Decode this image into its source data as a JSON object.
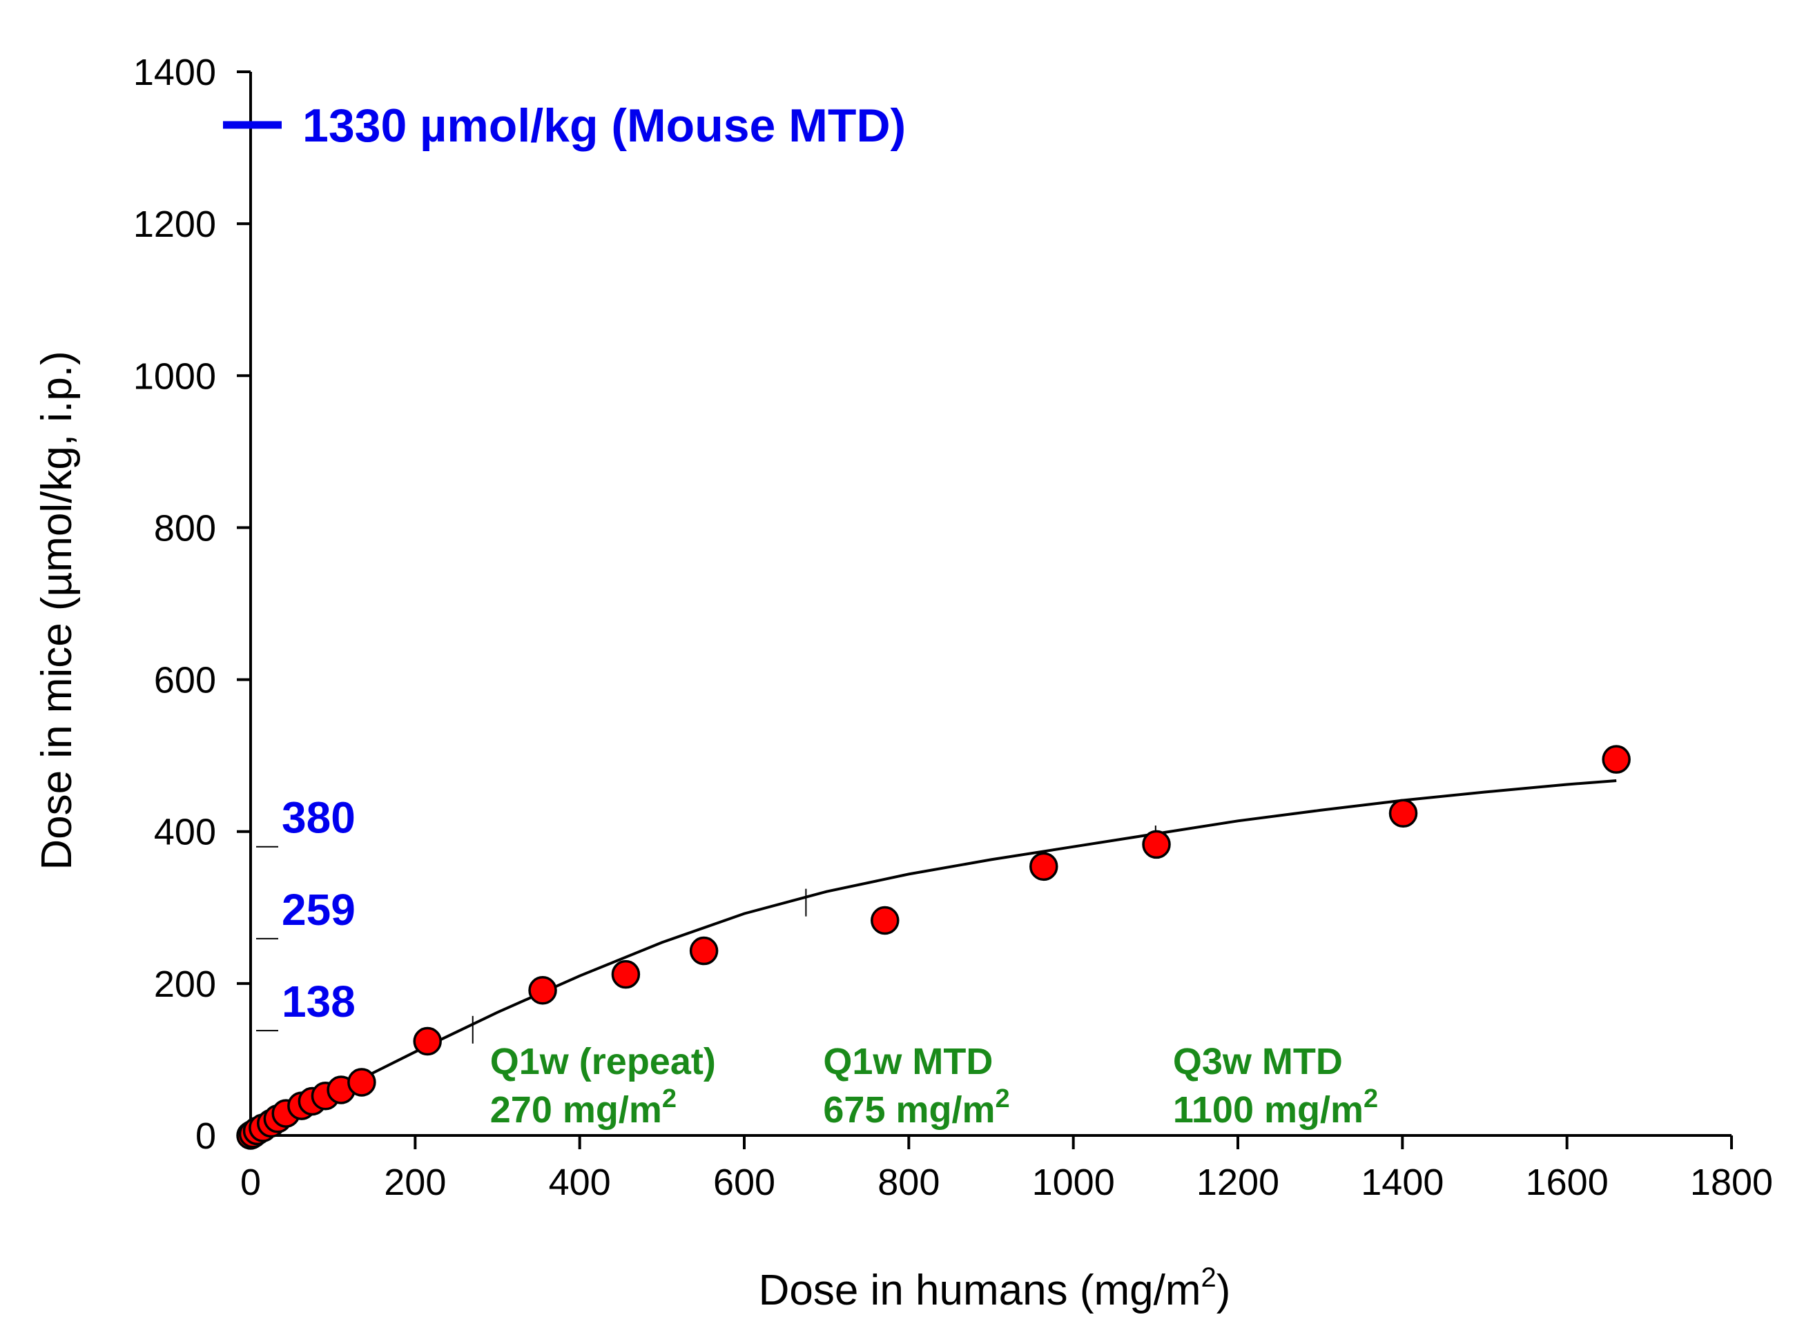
{
  "chart_data": {
    "type": "scatter",
    "title": "",
    "xlabel_main": "Dose in humans (mg/m",
    "xlabel_sup": "2",
    "xlabel_tail": ")",
    "ylabel": "Dose in mice (µmol/kg, i.p.)",
    "xlim": [
      0,
      1800
    ],
    "ylim": [
      0,
      1400
    ],
    "xticks": [
      0,
      200,
      400,
      600,
      800,
      1000,
      1200,
      1400,
      1600,
      1800
    ],
    "yticks": [
      0,
      200,
      400,
      600,
      800,
      1000,
      1200,
      1400
    ],
    "xtick_labels": [
      "0",
      "200",
      "400",
      "600",
      "800",
      "1000",
      "1200",
      "1400",
      "1600",
      "1800"
    ],
    "ytick_labels": [
      "0",
      "200",
      "400",
      "600",
      "800",
      "1000",
      "1200",
      "1400"
    ],
    "marker_color": "#ff0000",
    "points": [
      {
        "x": 0,
        "y": 0
      },
      {
        "x": 3,
        "y": 2
      },
      {
        "x": 8,
        "y": 6
      },
      {
        "x": 15,
        "y": 10
      },
      {
        "x": 25,
        "y": 16
      },
      {
        "x": 33,
        "y": 22
      },
      {
        "x": 43,
        "y": 29
      },
      {
        "x": 62,
        "y": 39
      },
      {
        "x": 75,
        "y": 45
      },
      {
        "x": 91,
        "y": 52
      },
      {
        "x": 110,
        "y": 60
      },
      {
        "x": 135,
        "y": 70
      },
      {
        "x": 215,
        "y": 124
      },
      {
        "x": 355,
        "y": 191
      },
      {
        "x": 456,
        "y": 212
      },
      {
        "x": 551,
        "y": 243
      },
      {
        "x": 771,
        "y": 283
      },
      {
        "x": 964,
        "y": 354
      },
      {
        "x": 1101,
        "y": 383
      },
      {
        "x": 1401,
        "y": 424
      },
      {
        "x": 1660,
        "y": 495
      }
    ],
    "fit_curve": {
      "x": [
        0,
        50,
        100,
        150,
        200,
        300,
        400,
        500,
        600,
        700,
        800,
        900,
        1000,
        1100,
        1200,
        1300,
        1400,
        1500,
        1600,
        1660
      ],
      "y": [
        0,
        28,
        55,
        83,
        110,
        162,
        210,
        254,
        292,
        321,
        344,
        363,
        380,
        397,
        414,
        428,
        441,
        452,
        462,
        467
      ]
    },
    "mtd_marker": {
      "y": 1330,
      "label": "1330 µmol/kg (Mouse MTD)"
    },
    "y_annotations": [
      {
        "y": 380,
        "label": "380"
      },
      {
        "y": 259,
        "label": "259"
      },
      {
        "y": 138,
        "label": "138"
      }
    ],
    "x_annotations": [
      {
        "x": 270,
        "line1": "Q1w (repeat)",
        "line2_main": "270 mg/m",
        "line2_sup": "2"
      },
      {
        "x": 675,
        "line1": "Q1w MTD",
        "line2_main": "675 mg/m",
        "line2_sup": "2"
      },
      {
        "x": 1100,
        "line1": "Q3w MTD",
        "line2_main": "1100 mg/m",
        "line2_sup": "2"
      }
    ]
  }
}
